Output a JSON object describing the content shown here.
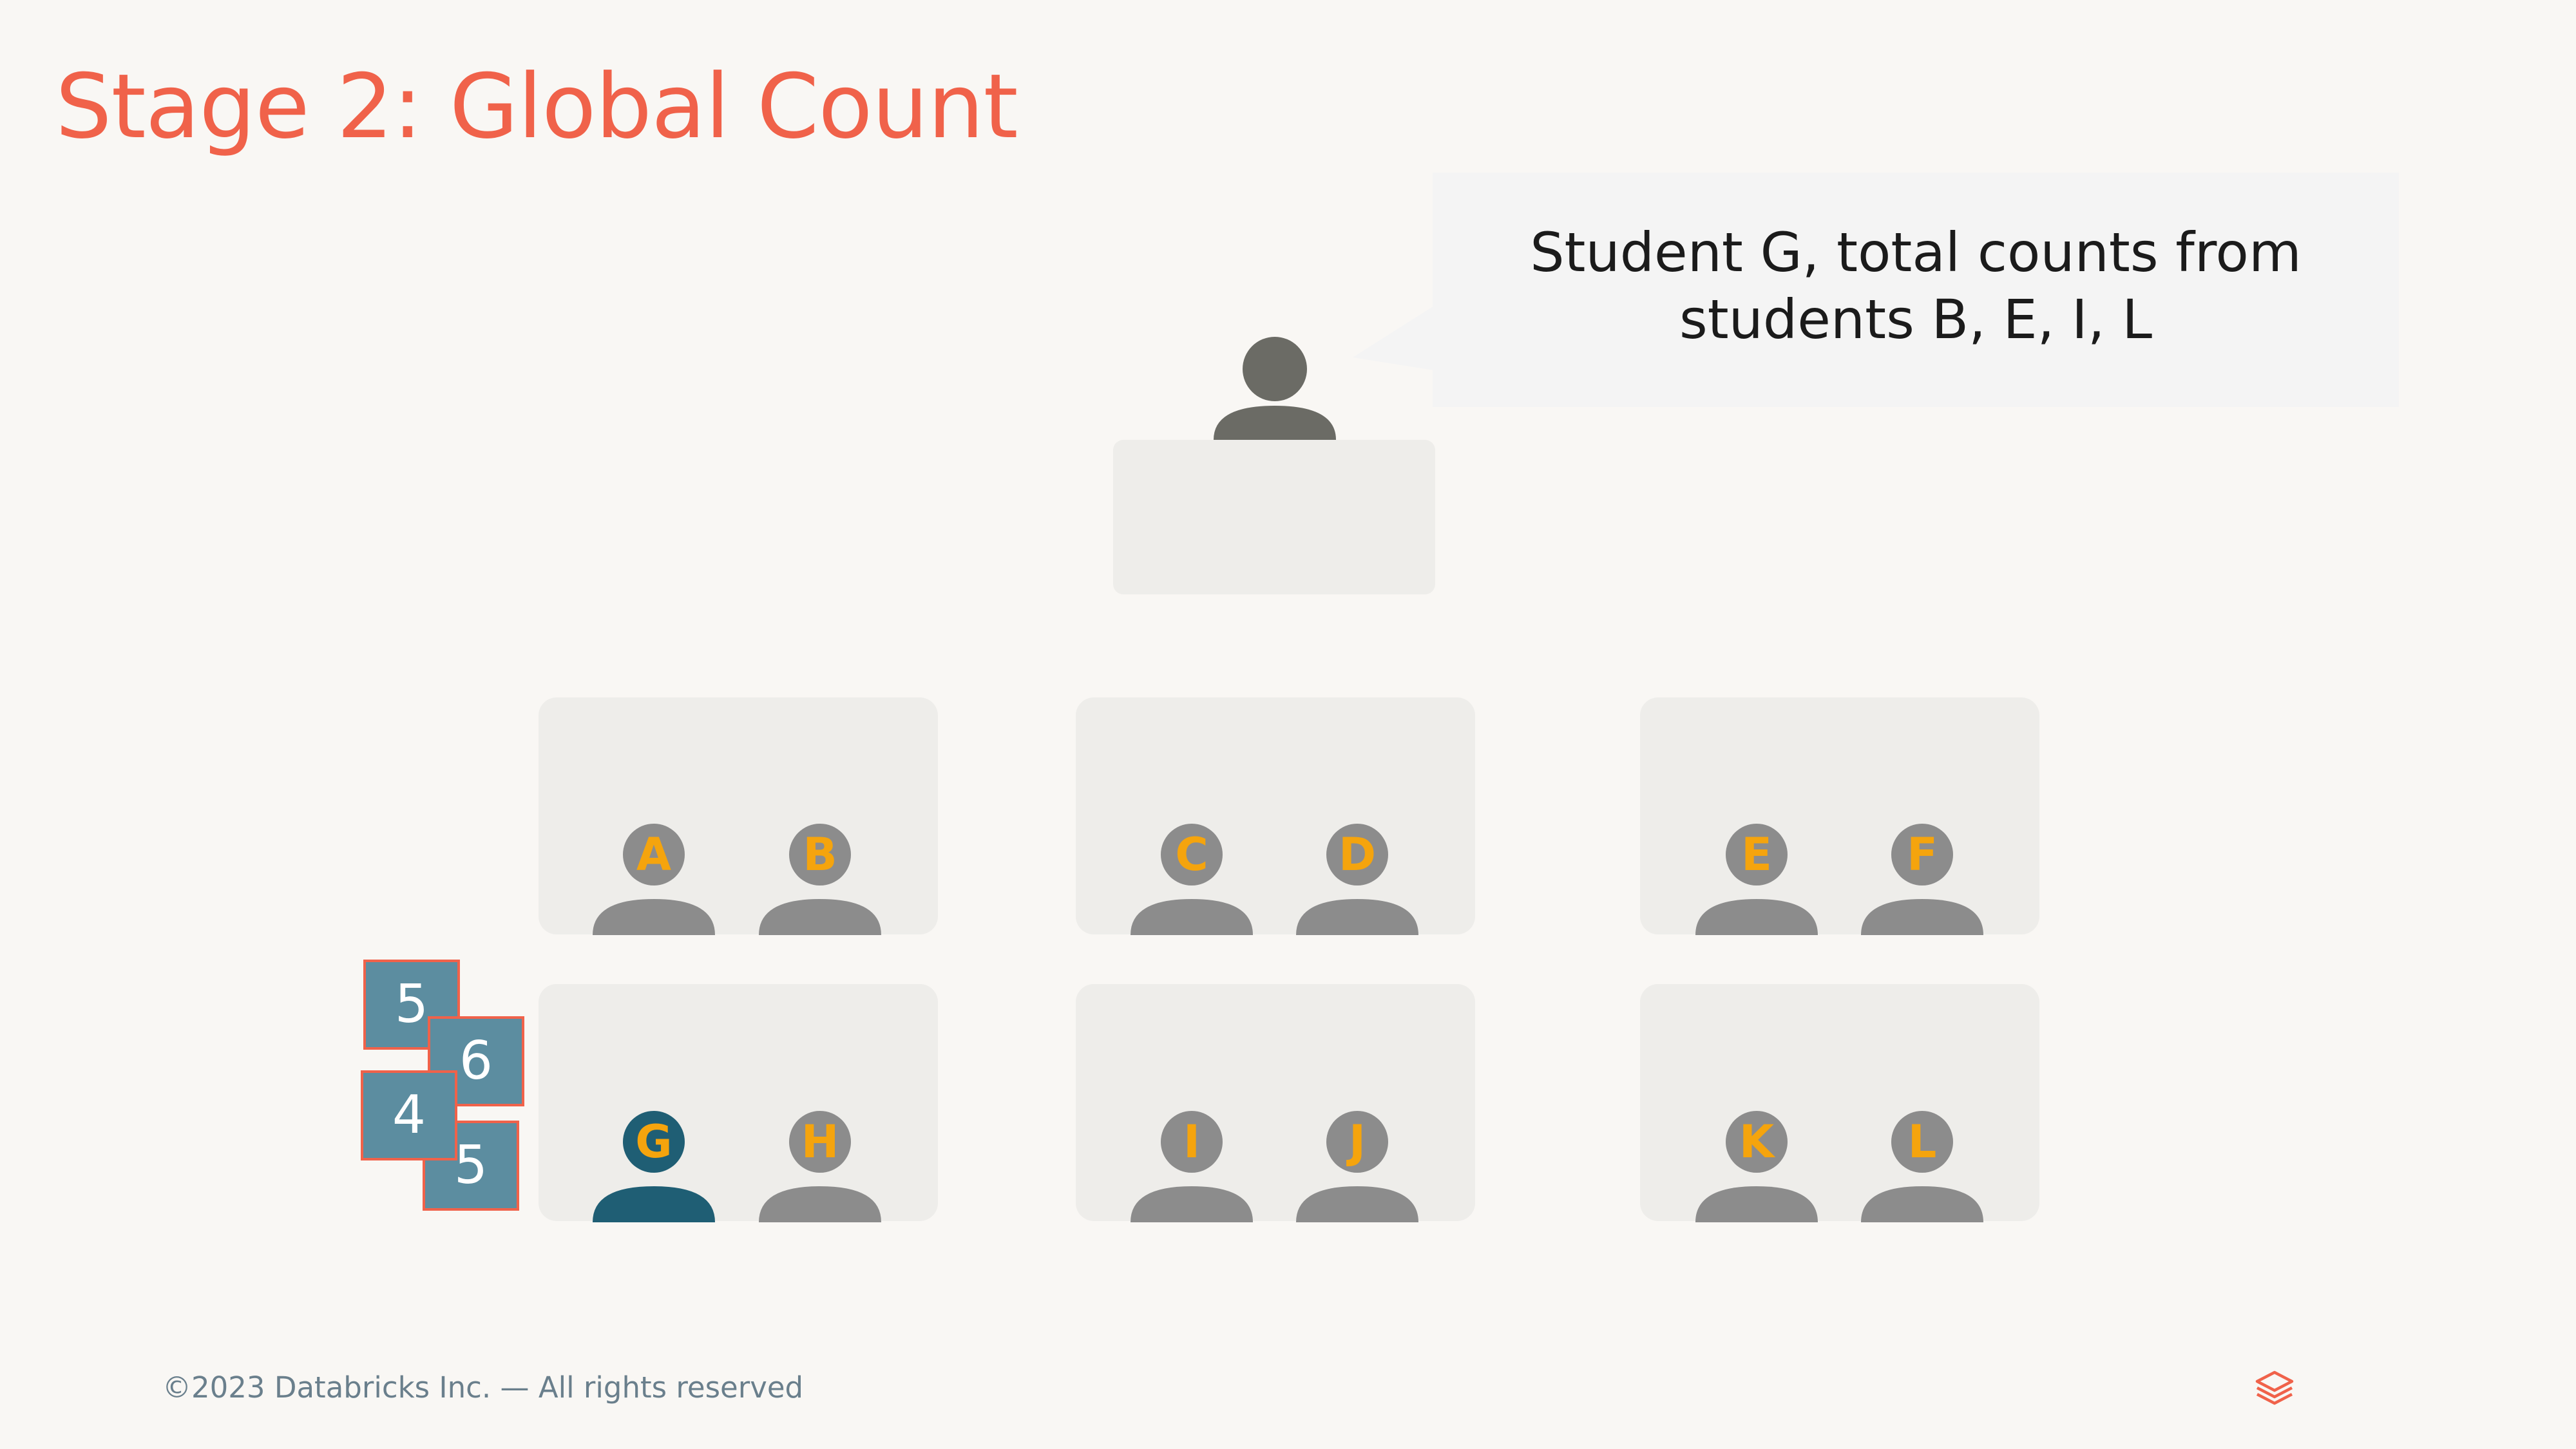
{
  "title": "Stage 2: Global Count",
  "speech_bubble": {
    "line1": "Student G, total counts from",
    "line2": "students B, E, I, L"
  },
  "students": {
    "a": "A",
    "b": "B",
    "c": "C",
    "d": "D",
    "e": "E",
    "f": "F",
    "g": "G",
    "h": "H",
    "i": "I",
    "j": "J",
    "k": "K",
    "l": "L"
  },
  "count_cards": [
    "5",
    "6",
    "4",
    "5"
  ],
  "footer": "©2023 Databricks Inc. — All rights reserved",
  "colors": {
    "title": "#f0624a",
    "student": "#8c8c8c",
    "active_student": "#1f5e74",
    "teacher": "#6b6b65",
    "letter": "#f5a40d",
    "card": "#5c8da0"
  },
  "icons": {
    "teacher": "teacher-icon",
    "student": "person-icon",
    "logo": "databricks-logo-icon"
  }
}
